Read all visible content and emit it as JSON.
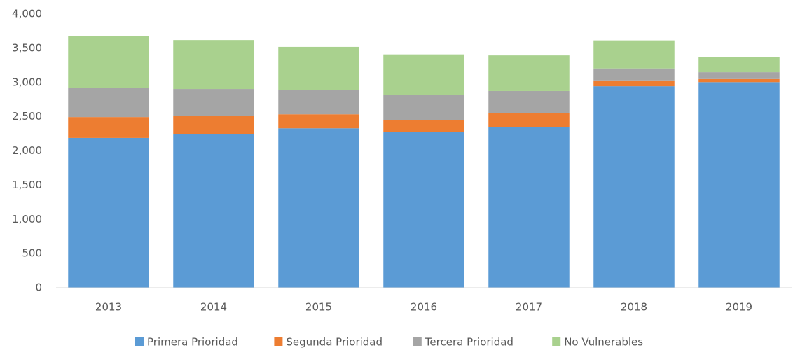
{
  "chart_data": {
    "type": "stacked_bar",
    "categories": [
      "2013",
      "2014",
      "2015",
      "2016",
      "2017",
      "2018",
      "2019"
    ],
    "series": [
      {
        "name": "Primera Prioridad",
        "color": "#5b9bd5",
        "values": [
          2190,
          2250,
          2330,
          2280,
          2350,
          2945,
          3005
        ]
      },
      {
        "name": "Segunda Prioridad",
        "color": "#ed7d31",
        "values": [
          305,
          265,
          205,
          165,
          205,
          85,
          45
        ]
      },
      {
        "name": "Tercera Prioridad",
        "color": "#a5a5a5",
        "values": [
          430,
          390,
          360,
          370,
          320,
          175,
          100
        ]
      },
      {
        "name": "No Vulnerables",
        "color": "#a9d18e",
        "values": [
          755,
          715,
          625,
          595,
          520,
          410,
          225
        ]
      }
    ],
    "ylim": [
      0,
      4000
    ],
    "yticks": [
      0,
      500,
      {
        "value": 1000,
        "label": "1,000"
      },
      {
        "value": 1500,
        "label": "1,500"
      },
      {
        "value": 2000,
        "label": "2,000"
      },
      {
        "value": 2500,
        "label": "2,500"
      },
      {
        "value": 3000,
        "label": "3,000"
      },
      {
        "value": 3500,
        "label": "3,500"
      },
      {
        "value": 4000,
        "label": "4,000"
      }
    ],
    "grid": false,
    "legend": "bottom"
  }
}
